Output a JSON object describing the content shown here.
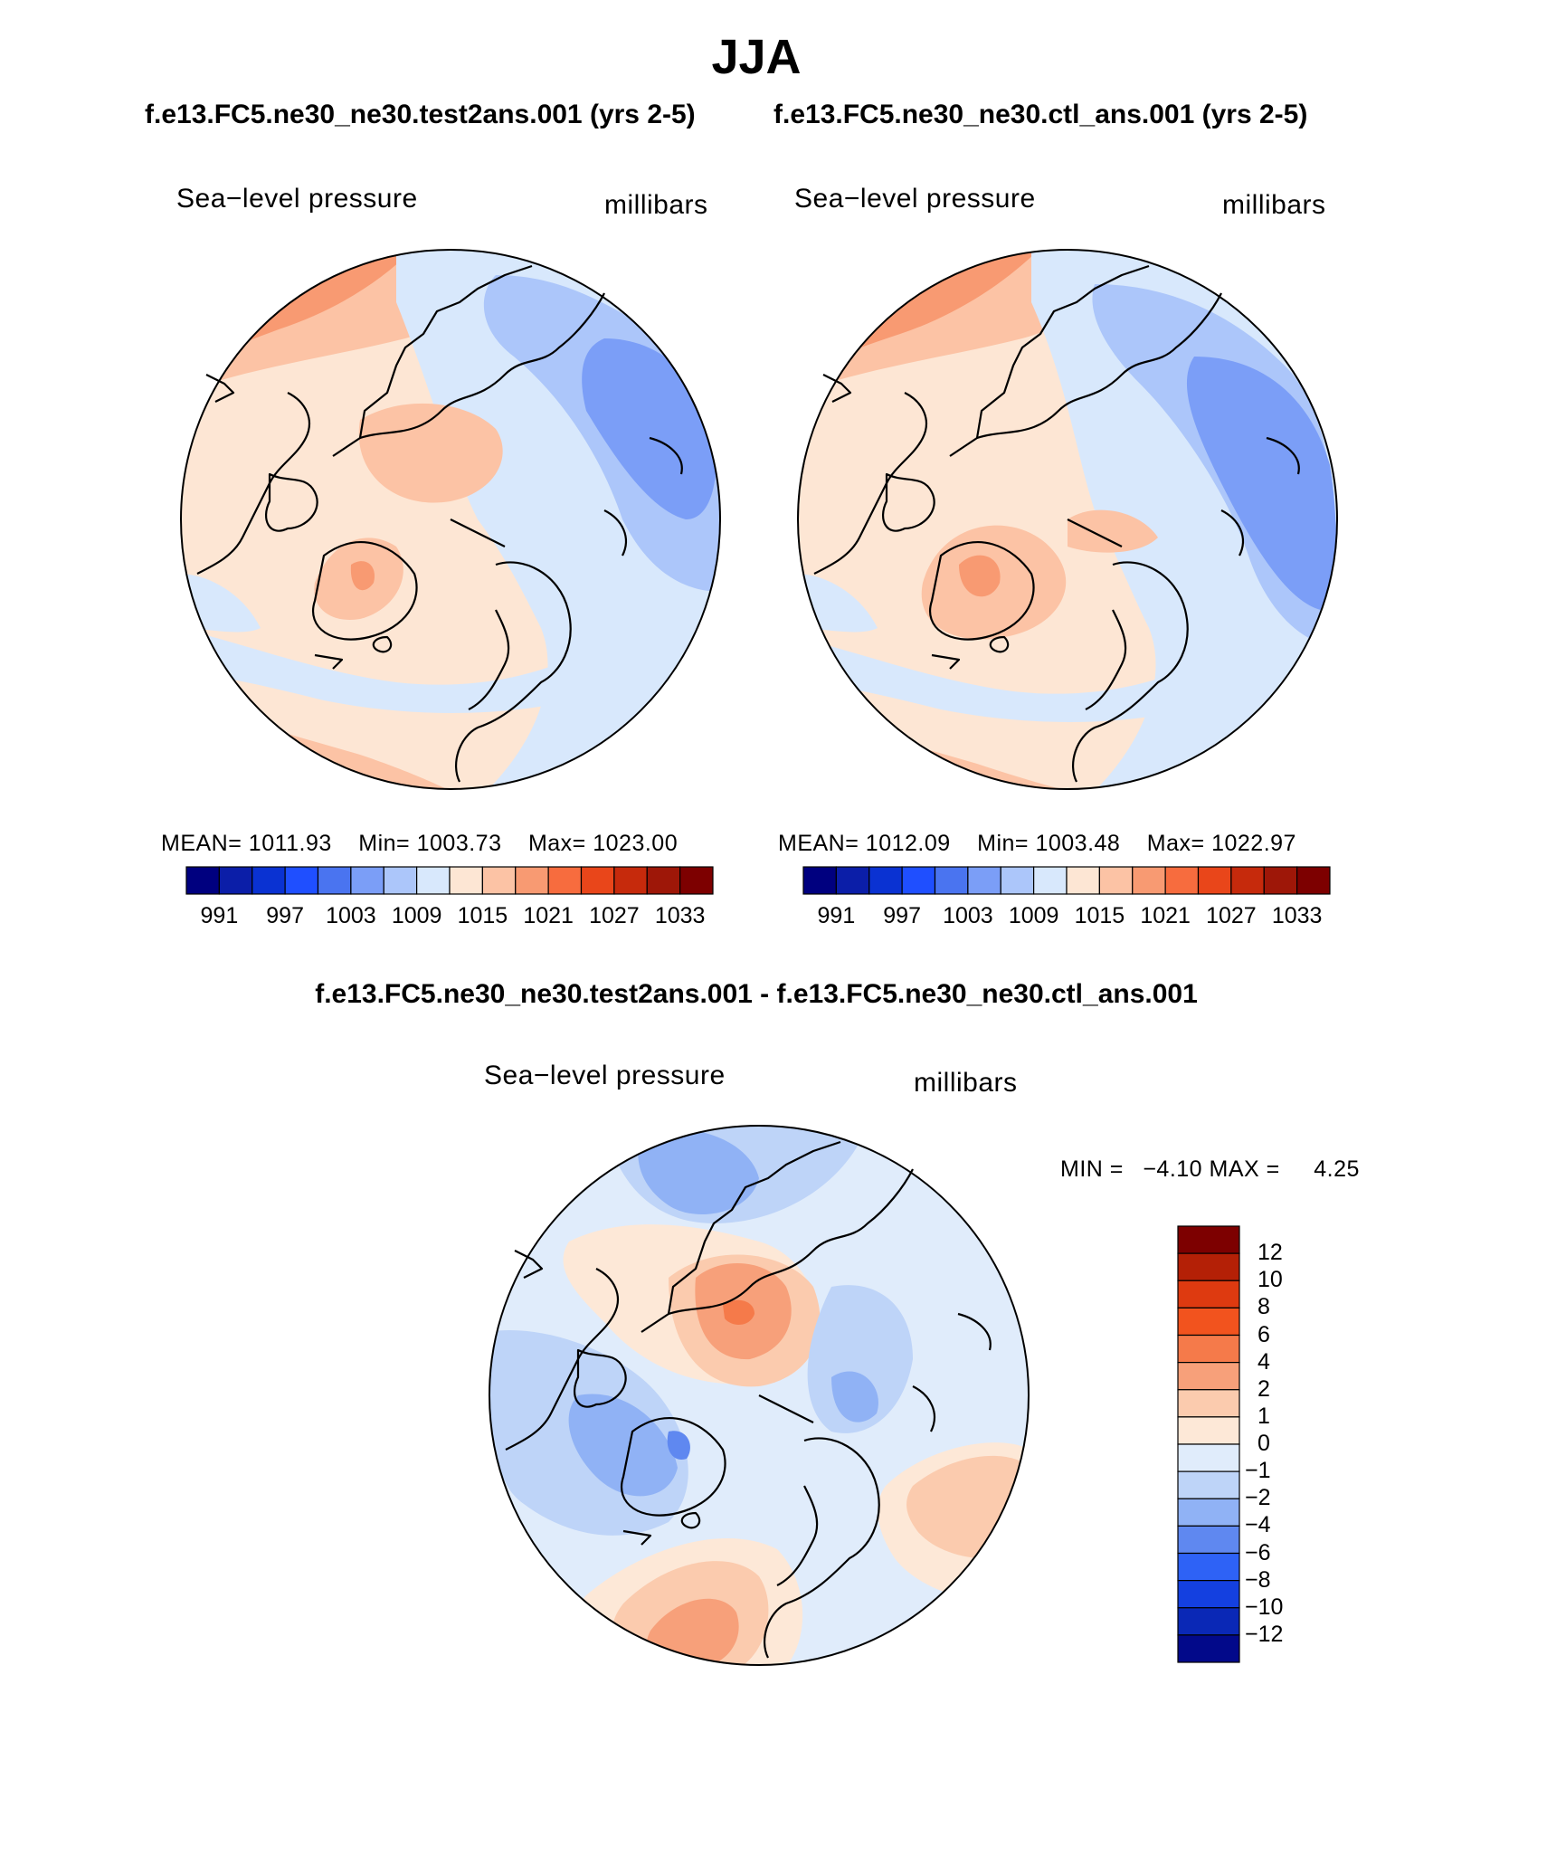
{
  "figure": {
    "season": "JJA",
    "diff_title": "f.e13.FC5.ne30_ne30.test2ans.001 - f.e13.FC5.ne30_ne30.ctl_ans.001"
  },
  "panels": [
    {
      "header": "f.e13.FC5.ne30_ne30.test2ans.001 (yrs 2-5)",
      "variable": "Sea−level pressure",
      "units": "millibars",
      "stats": {
        "mean_label": "MEAN=",
        "mean": "1011.93",
        "min_label": "Min=",
        "min": "1003.73",
        "max_label": "Max=",
        "max": "1023.00"
      }
    },
    {
      "header": "f.e13.FC5.ne30_ne30.ctl_ans.001 (yrs 2-5)",
      "variable": "Sea−level pressure",
      "units": "millibars",
      "stats": {
        "mean_label": "MEAN=",
        "mean": "1012.09",
        "min_label": "Min=",
        "min": "1003.48",
        "max_label": "Max=",
        "max": "1022.97"
      }
    },
    {
      "variable": "Sea−level pressure",
      "units": "millibars",
      "stats": {
        "min_label": "MIN =",
        "min": "−4.10",
        "max_label": "MAX =",
        "max": "4.25"
      }
    }
  ],
  "colorbars": {
    "abs": {
      "colors": [
        "#00007f",
        "#0b1ea8",
        "#0a32d2",
        "#1f4fff",
        "#4a74f0",
        "#7b9ef7",
        "#acc6fa",
        "#d8e8fc",
        "#fde6d4",
        "#fcc3a5",
        "#f89a72",
        "#f76c3e",
        "#e9461a",
        "#c62a0c",
        "#9e1708",
        "#7d0000"
      ],
      "labels": [
        "991",
        "997",
        "1003",
        "1009",
        "1015",
        "1021",
        "1027",
        "1033"
      ]
    },
    "diff": {
      "colors_top_to_bottom": [
        "#7d0000",
        "#b42006",
        "#de3a10",
        "#f2531e",
        "#f57a4a",
        "#f7a07a",
        "#fbcbae",
        "#fde8d7",
        "#e0ecfb",
        "#bed4f8",
        "#90b2f5",
        "#5f88f0",
        "#2e62f6",
        "#1440e0",
        "#0a28b6",
        "#02098a"
      ],
      "labels": [
        "12",
        "10",
        "8",
        "6",
        "4",
        "2",
        "1",
        "0",
        "−1",
        "−2",
        "−4",
        "−6",
        "−8",
        "−10",
        "−12"
      ]
    }
  },
  "legend_colors": {
    "light_red": "#fde6d4",
    "pale_red": "#fcc3a5",
    "mid_red": "#f89a72",
    "strong_red": "#f76c3e",
    "light_blue": "#d8e8fc",
    "pale_blue": "#acc6fa",
    "mid_blue": "#7b9ef7",
    "diff_light_blue": "#e0ecfb",
    "diff_pale_blue": "#bed4f8",
    "diff_mid_blue": "#90b2f5",
    "diff_strong_blue": "#5f88f0",
    "diff_light_red": "#fde8d7",
    "diff_pale_red": "#fbcbae",
    "diff_mid_red": "#f7a07a",
    "diff_strong_red": "#f57a4a"
  }
}
